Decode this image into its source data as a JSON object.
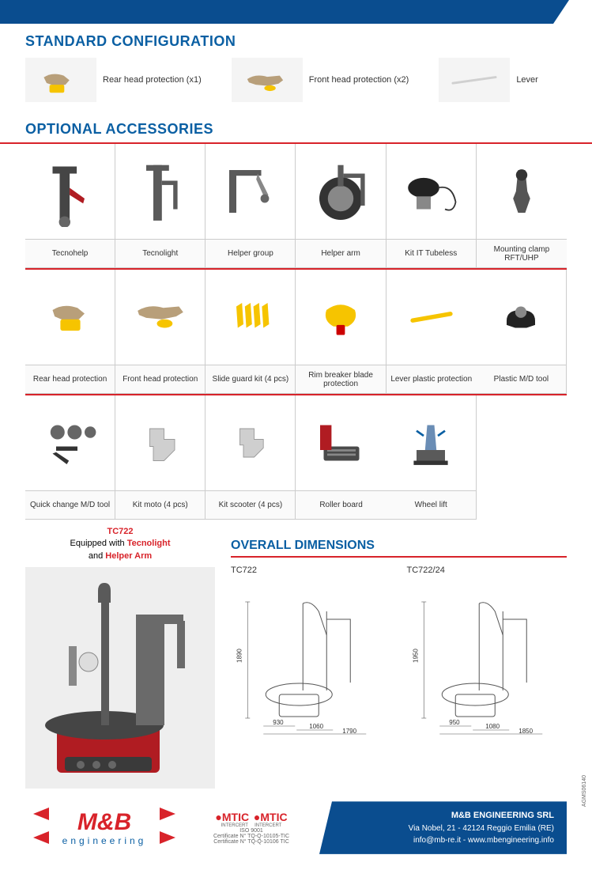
{
  "colors": {
    "blue": "#0a5fa3",
    "dark_blue": "#0a4d8f",
    "red": "#d8232a",
    "yellow": "#f6c400",
    "grey": "#cccccc",
    "text": "#333333"
  },
  "headings": {
    "standard": "STANDARD CONFIGURATION",
    "optional": "OPTIONAL ACCESSORIES",
    "dimensions": "OVERALL DIMENSIONS"
  },
  "standard_items": [
    {
      "label": "Rear head protection (x1)"
    },
    {
      "label": "Front head protection (x2)"
    },
    {
      "label": "Lever"
    }
  ],
  "accessories": [
    {
      "label": "Tecnohelp"
    },
    {
      "label": "Tecnolight"
    },
    {
      "label": "Helper group"
    },
    {
      "label": "Helper arm"
    },
    {
      "label": "Kit IT Tubeless"
    },
    {
      "label": "Mounting clamp RFT/UHP"
    },
    {
      "label": "Rear head protection"
    },
    {
      "label": "Front head protection"
    },
    {
      "label": "Slide guard kit (4 pcs)"
    },
    {
      "label": "Rim breaker blade protection"
    },
    {
      "label": "Lever plastic protection"
    },
    {
      "label": "Plastic M/D tool"
    },
    {
      "label": "Quick change M/D tool"
    },
    {
      "label": "Kit moto (4 pcs)"
    },
    {
      "label": "Kit scooter (4 pcs)"
    },
    {
      "label": "Roller board"
    },
    {
      "label": "Wheel lift"
    },
    {
      "label": "",
      "empty": true
    }
  ],
  "product": {
    "model": "TC722",
    "line1": "Equipped with ",
    "accent1": "Tecnolight",
    "line2": "and ",
    "accent2": "Helper Arm"
  },
  "dimensions": {
    "models": [
      {
        "name": "TC722",
        "height": "1890",
        "depth": "930",
        "width1": "1060",
        "width2": "1790"
      },
      {
        "name": "TC722/24",
        "height": "1950",
        "depth": "950",
        "width1": "1080",
        "width2": "1850"
      }
    ]
  },
  "footer": {
    "logo_main": "M&B",
    "logo_sub": "engineering",
    "cert1": "MTIC",
    "cert1_sub": "INTERCERT",
    "cert1_detail": "ISO 9001",
    "cert1_cert": "Certificate N° TQ-Q-10105-TIC",
    "cert2": "MTIC",
    "cert2_sub": "INTERCERT",
    "cert2_detail": "",
    "cert2_cert": "Certificate N° TQ-Q-10106 TIC",
    "company": "M&B ENGINEERING SRL",
    "address": "Via Nobel, 21 - 42124 Reggio Emilia (RE)",
    "contact": "info@mb-re.it - www.mbengineering.info"
  },
  "doc_code": "AGMS06140"
}
